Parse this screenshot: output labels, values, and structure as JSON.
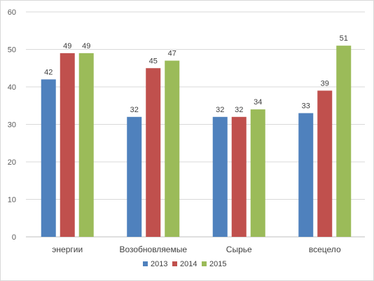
{
  "chart_data": {
    "type": "bar",
    "categories": [
      "энергии",
      "Возобновляемые",
      "Сырье",
      "всецело"
    ],
    "series": [
      {
        "name": "2013",
        "values": [
          42,
          32,
          32,
          33
        ],
        "color": "#4f81bd"
      },
      {
        "name": "2014",
        "values": [
          49,
          45,
          32,
          39
        ],
        "color": "#c0504d"
      },
      {
        "name": "2015",
        "values": [
          49,
          47,
          34,
          51
        ],
        "color": "#9bbb59"
      }
    ],
    "ylim": [
      0,
      60
    ],
    "yticks": [
      0,
      10,
      20,
      30,
      40,
      50,
      60
    ],
    "grid": true,
    "legend": "bottom",
    "data_labels": true
  }
}
